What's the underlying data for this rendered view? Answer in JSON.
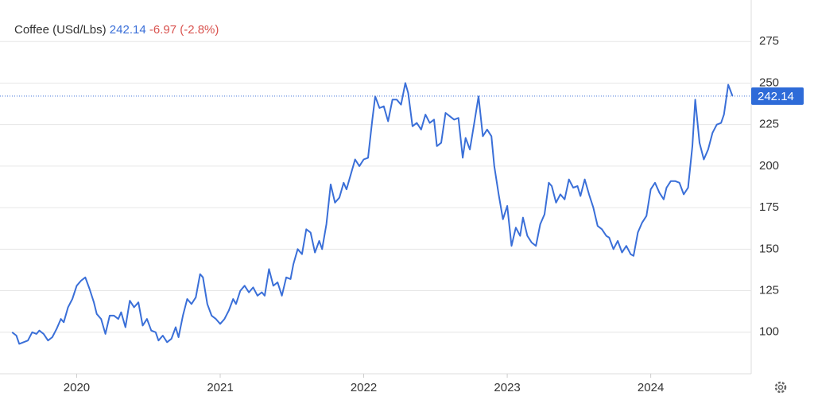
{
  "chart_data": {
    "type": "line",
    "title": "Coffee (USd/Lbs)",
    "price": 242.14,
    "change": "-6.97 (-2.8%)",
    "x": [
      2019.55,
      2019.58,
      2019.6,
      2019.63,
      2019.66,
      2019.69,
      2019.72,
      2019.74,
      2019.77,
      2019.8,
      2019.83,
      2019.86,
      2019.89,
      2019.91,
      2019.94,
      2019.97,
      2020.0,
      2020.03,
      2020.06,
      2020.09,
      2020.12,
      2020.14,
      2020.17,
      2020.2,
      2020.23,
      2020.26,
      2020.29,
      2020.31,
      2020.34,
      2020.37,
      2020.4,
      2020.43,
      2020.46,
      2020.49,
      2020.52,
      2020.55,
      2020.57,
      2020.6,
      2020.63,
      2020.66,
      2020.69,
      2020.71,
      2020.74,
      2020.77,
      2020.8,
      2020.83,
      2020.86,
      2020.88,
      2020.91,
      2020.94,
      2020.97,
      2021.0,
      2021.03,
      2021.06,
      2021.09,
      2021.11,
      2021.14,
      2021.17,
      2021.2,
      2021.23,
      2021.26,
      2021.29,
      2021.31,
      2021.34,
      2021.37,
      2021.4,
      2021.43,
      2021.46,
      2021.49,
      2021.51,
      2021.54,
      2021.57,
      2021.6,
      2021.63,
      2021.66,
      2021.69,
      2021.71,
      2021.74,
      2021.77,
      2021.8,
      2021.83,
      2021.86,
      2021.88,
      2021.91,
      2021.94,
      2021.97,
      2022.0,
      2022.03,
      2022.06,
      2022.08,
      2022.11,
      2022.14,
      2022.17,
      2022.2,
      2022.23,
      2022.26,
      2022.29,
      2022.31,
      2022.34,
      2022.37,
      2022.4,
      2022.43,
      2022.46,
      2022.49,
      2022.51,
      2022.54,
      2022.57,
      2022.6,
      2022.63,
      2022.66,
      2022.69,
      2022.71,
      2022.74,
      2022.77,
      2022.8,
      2022.83,
      2022.86,
      2022.89,
      2022.91,
      2022.94,
      2022.97,
      2023.0,
      2023.03,
      2023.06,
      2023.09,
      2023.11,
      2023.14,
      2023.17,
      2023.2,
      2023.23,
      2023.26,
      2023.29,
      2023.31,
      2023.34,
      2023.37,
      2023.4,
      2023.43,
      2023.46,
      2023.49,
      2023.51,
      2023.54,
      2023.57,
      2023.6,
      2023.63,
      2023.66,
      2023.69,
      2023.71,
      2023.74,
      2023.77,
      2023.8,
      2023.83,
      2023.86,
      2023.88,
      2023.91,
      2023.94,
      2023.97,
      2024.0,
      2024.03,
      2024.06,
      2024.09,
      2024.11,
      2024.14,
      2024.17,
      2024.2,
      2024.23,
      2024.26,
      2024.29,
      2024.31,
      2024.34,
      2024.37,
      2024.4,
      2024.43,
      2024.46,
      2024.49,
      2024.51,
      2024.54,
      2024.57
    ],
    "series": [
      {
        "name": "Coffee",
        "color": "#3a6fd8",
        "values": [
          100,
          98,
          93,
          94,
          95,
          100,
          99,
          101,
          99,
          95,
          97,
          102,
          108,
          106,
          115,
          120,
          128,
          131,
          133,
          126,
          118,
          111,
          108,
          99,
          110,
          110,
          108,
          112,
          103,
          119,
          115,
          118,
          104,
          108,
          101,
          100,
          95,
          98,
          94,
          96,
          103,
          97,
          110,
          120,
          117,
          121,
          135,
          133,
          117,
          110,
          108,
          105,
          108,
          113,
          120,
          117,
          125,
          128,
          124,
          127,
          122,
          124,
          122,
          138,
          128,
          130,
          122,
          133,
          132,
          141,
          150,
          147,
          162,
          160,
          148,
          155,
          150,
          165,
          189,
          178,
          181,
          190,
          186,
          195,
          204,
          200,
          204,
          205,
          228,
          242,
          235,
          236,
          227,
          240,
          240,
          237,
          250,
          244,
          224,
          226,
          222,
          231,
          226,
          228,
          212,
          214,
          232,
          230,
          228,
          229,
          205,
          217,
          210,
          226,
          242,
          218,
          222,
          218,
          200,
          183,
          168,
          176,
          152,
          163,
          158,
          169,
          158,
          154,
          152,
          165,
          171,
          190,
          188,
          178,
          183,
          180,
          192,
          187,
          188,
          182,
          192,
          183,
          175,
          164,
          162,
          158,
          157,
          150,
          155,
          148,
          152,
          147,
          146,
          160,
          166,
          170,
          186,
          190,
          184,
          180,
          187,
          191,
          191,
          190,
          183,
          187,
          212,
          240,
          214,
          204,
          210,
          220,
          225,
          226,
          231,
          249,
          242.14
        ]
      }
    ],
    "xlim": [
      2019.51,
      2024.7
    ],
    "xticks": [
      2020,
      2021,
      2022,
      2023,
      2024
    ],
    "ylim": [
      75,
      300
    ],
    "yticks": [
      100,
      125,
      150,
      175,
      200,
      225,
      250,
      275
    ],
    "grid": true
  }
}
